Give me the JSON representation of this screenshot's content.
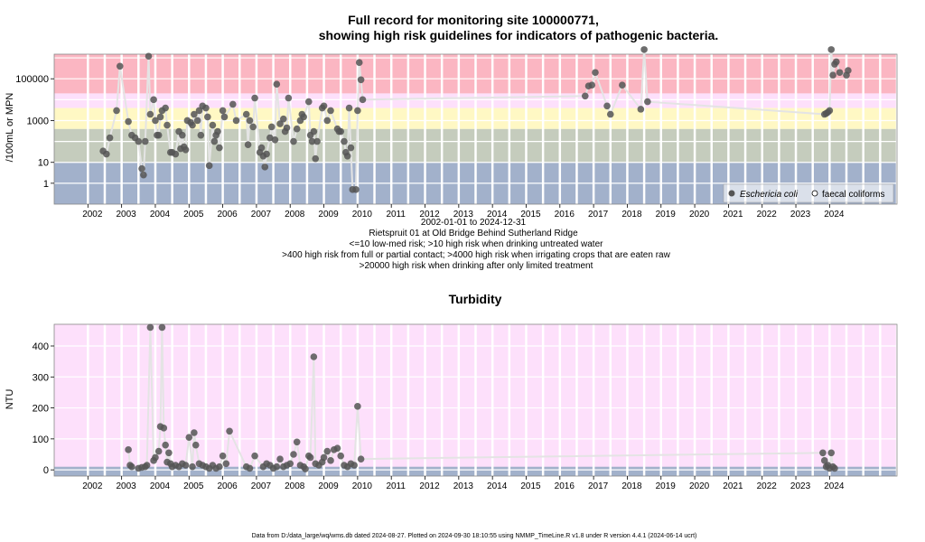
{
  "chart_data": [
    {
      "type": "scatter",
      "title_line1": "Full record for monitoring site 100000771,",
      "title_line2": "showing high risk guidelines for indicators of pathogenic bacteria.",
      "ylabel": "/100mL or MPN",
      "y_scale": "log",
      "ylim": [
        0.1,
        1500000
      ],
      "xlim": [
        2001.0,
        2026.0
      ],
      "y_ticks": [
        "1",
        "10",
        "1000",
        "100000"
      ],
      "x_ticks": [
        "2002",
        "2003",
        "2004",
        "2005",
        "2006",
        "2007",
        "2008",
        "2009",
        "2010",
        "2011",
        "2012",
        "2013",
        "2014",
        "2015",
        "2016",
        "2017",
        "2018",
        "2019",
        "2020",
        "2021",
        "2022",
        "2023",
        "2024"
      ],
      "risk_bands": [
        {
          "from": 0.1,
          "to": 10,
          "color": "#a2b1cb"
        },
        {
          "from": 10,
          "to": 400,
          "color": "#c5ccbd"
        },
        {
          "from": 400,
          "to": 4000,
          "color": "#fff8c4"
        },
        {
          "from": 4000,
          "to": 20000,
          "color": "#fde0fb"
        },
        {
          "from": 20000,
          "to": 1500000,
          "color": "#fbb6c2"
        }
      ],
      "subtitle_lines": [
        "2002-01-01 to 2024-12-31",
        "Rietspruit 01 at Old Bridge Behind Sutherland Ridge",
        "<=10 low-med risk; >10 high risk when drinking untreated water",
        ">400 high risk from full or partial contact; >4000 high risk when irrigating crops that are eaten raw",
        ">20000 high risk when drinking after only limited treatment"
      ],
      "legend": {
        "position": "bottom-right",
        "series1": "Eschericia coli",
        "series2": "faecal coliforms"
      },
      "series": [
        {
          "name": "Eschericia coli",
          "points": [
            [
              2002.45,
              35
            ],
            [
              2002.55,
              25
            ],
            [
              2002.65,
              150
            ],
            [
              2002.85,
              3000
            ],
            [
              2002.95,
              400000
            ],
            [
              2003.2,
              900
            ],
            [
              2003.3,
              200
            ],
            [
              2003.4,
              150
            ],
            [
              2003.5,
              100
            ],
            [
              2003.6,
              5
            ],
            [
              2003.65,
              2.5
            ],
            [
              2003.7,
              100
            ],
            [
              2003.8,
              1200000
            ],
            [
              2003.85,
              2000
            ],
            [
              2003.95,
              10000
            ],
            [
              2004.0,
              1000
            ],
            [
              2004.05,
              200
            ],
            [
              2004.1,
              200
            ],
            [
              2004.15,
              1500
            ],
            [
              2004.2,
              3000
            ],
            [
              2004.3,
              4000
            ],
            [
              2004.35,
              600
            ],
            [
              2004.45,
              30
            ],
            [
              2004.5,
              30
            ],
            [
              2004.6,
              25
            ],
            [
              2004.7,
              300
            ],
            [
              2004.75,
              45
            ],
            [
              2004.8,
              200
            ],
            [
              2004.85,
              55
            ],
            [
              2004.9,
              40
            ],
            [
              2004.95,
              1000
            ],
            [
              2005.05,
              800
            ],
            [
              2005.1,
              600
            ],
            [
              2005.15,
              2000
            ],
            [
              2005.25,
              1000
            ],
            [
              2005.3,
              3000
            ],
            [
              2005.35,
              200
            ],
            [
              2005.4,
              5000
            ],
            [
              2005.5,
              4000
            ],
            [
              2005.55,
              1500
            ],
            [
              2005.6,
              7
            ],
            [
              2005.7,
              600
            ],
            [
              2005.75,
              100
            ],
            [
              2005.8,
              200
            ],
            [
              2005.85,
              300
            ],
            [
              2005.9,
              50
            ],
            [
              2006.0,
              3000
            ],
            [
              2006.05,
              1500
            ],
            [
              2006.3,
              6000
            ],
            [
              2006.4,
              1000
            ],
            [
              2006.7,
              2000
            ],
            [
              2006.75,
              70
            ],
            [
              2006.8,
              1000
            ],
            [
              2006.9,
              500
            ],
            [
              2006.95,
              12000
            ],
            [
              2007.1,
              30
            ],
            [
              2007.15,
              50
            ],
            [
              2007.2,
              20
            ],
            [
              2007.25,
              6
            ],
            [
              2007.3,
              25
            ],
            [
              2007.4,
              150
            ],
            [
              2007.45,
              500
            ],
            [
              2007.55,
              120
            ],
            [
              2007.6,
              55000
            ],
            [
              2007.7,
              700
            ],
            [
              2007.8,
              1200
            ],
            [
              2007.85,
              300
            ],
            [
              2007.9,
              450
            ],
            [
              2007.95,
              12000
            ],
            [
              2008.1,
              100
            ],
            [
              2008.2,
              400
            ],
            [
              2008.3,
              1000
            ],
            [
              2008.35,
              2000
            ],
            [
              2008.4,
              1500
            ],
            [
              2008.55,
              8000
            ],
            [
              2008.6,
              200
            ],
            [
              2008.65,
              100
            ],
            [
              2008.7,
              300
            ],
            [
              2008.75,
              15
            ],
            [
              2008.8,
              100
            ],
            [
              2008.95,
              4000
            ],
            [
              2009.0,
              5000
            ],
            [
              2009.1,
              1000
            ],
            [
              2009.2,
              3000
            ],
            [
              2009.4,
              400
            ],
            [
              2009.45,
              300
            ],
            [
              2009.5,
              300
            ],
            [
              2009.6,
              100
            ],
            [
              2009.65,
              30
            ],
            [
              2009.7,
              20
            ],
            [
              2009.75,
              4000
            ],
            [
              2009.8,
              50
            ],
            [
              2009.85,
              0.5
            ],
            [
              2009.95,
              0.5
            ],
            [
              2010.0,
              3000
            ],
            [
              2010.05,
              600000
            ],
            [
              2010.1,
              90000
            ],
            [
              2010.15,
              10000
            ],
            [
              2016.75,
              15000
            ],
            [
              2016.85,
              45000
            ],
            [
              2016.95,
              50000
            ],
            [
              2017.05,
              200000
            ],
            [
              2017.4,
              5000
            ],
            [
              2017.5,
              2000
            ],
            [
              2017.85,
              50000
            ],
            [
              2018.4,
              3500
            ],
            [
              2018.5,
              2500000
            ],
            [
              2018.6,
              8000
            ],
            [
              2023.85,
              2000
            ],
            [
              2023.9,
              2200
            ],
            [
              2023.95,
              2500
            ],
            [
              2024.0,
              3000
            ],
            [
              2024.05,
              2500000
            ],
            [
              2024.1,
              150000
            ],
            [
              2024.15,
              500000
            ],
            [
              2024.2,
              650000
            ],
            [
              2024.3,
              200000
            ],
            [
              2024.5,
              150000
            ],
            [
              2024.55,
              250000
            ]
          ]
        },
        {
          "name": "faecal coliforms",
          "points": []
        }
      ]
    },
    {
      "type": "scatter",
      "title": "Turbidity",
      "ylabel": "NTU",
      "ylim": [
        -20,
        470
      ],
      "xlim": [
        2001.0,
        2026.0
      ],
      "y_ticks": [
        0,
        100,
        200,
        300,
        400
      ],
      "x_ticks": [
        "2002",
        "2003",
        "2004",
        "2005",
        "2006",
        "2007",
        "2008",
        "2009",
        "2010",
        "2011",
        "2012",
        "2013",
        "2014",
        "2015",
        "2016",
        "2017",
        "2018",
        "2019",
        "2020",
        "2021",
        "2022",
        "2023",
        "2024"
      ],
      "series": [
        {
          "name": "",
          "points": [
            [
              2003.2,
              65
            ],
            [
              2003.25,
              15
            ],
            [
              2003.3,
              10
            ],
            [
              2003.5,
              5
            ],
            [
              2003.6,
              8
            ],
            [
              2003.7,
              10
            ],
            [
              2003.75,
              15
            ],
            [
              2003.85,
              460
            ],
            [
              2003.95,
              30
            ],
            [
              2004.0,
              40
            ],
            [
              2004.1,
              60
            ],
            [
              2004.15,
              140
            ],
            [
              2004.2,
              460
            ],
            [
              2004.25,
              135
            ],
            [
              2004.3,
              80
            ],
            [
              2004.35,
              25
            ],
            [
              2004.4,
              55
            ],
            [
              2004.45,
              20
            ],
            [
              2004.5,
              10
            ],
            [
              2004.6,
              15
            ],
            [
              2004.7,
              10
            ],
            [
              2004.8,
              20
            ],
            [
              2004.9,
              15
            ],
            [
              2005.0,
              105
            ],
            [
              2005.1,
              10
            ],
            [
              2005.15,
              120
            ],
            [
              2005.2,
              80
            ],
            [
              2005.3,
              20
            ],
            [
              2005.4,
              15
            ],
            [
              2005.5,
              10
            ],
            [
              2005.6,
              5
            ],
            [
              2005.7,
              15
            ],
            [
              2005.8,
              5
            ],
            [
              2005.9,
              10
            ],
            [
              2006.0,
              45
            ],
            [
              2006.1,
              20
            ],
            [
              2006.2,
              125
            ],
            [
              2006.7,
              10
            ],
            [
              2006.8,
              5
            ],
            [
              2006.95,
              45
            ],
            [
              2007.2,
              10
            ],
            [
              2007.3,
              20
            ],
            [
              2007.4,
              15
            ],
            [
              2007.5,
              5
            ],
            [
              2007.6,
              10
            ],
            [
              2007.7,
              35
            ],
            [
              2007.8,
              10
            ],
            [
              2007.9,
              15
            ],
            [
              2008.0,
              20
            ],
            [
              2008.1,
              50
            ],
            [
              2008.2,
              90
            ],
            [
              2008.3,
              15
            ],
            [
              2008.4,
              10
            ],
            [
              2008.45,
              3
            ],
            [
              2008.55,
              45
            ],
            [
              2008.6,
              40
            ],
            [
              2008.7,
              365
            ],
            [
              2008.75,
              20
            ],
            [
              2008.85,
              15
            ],
            [
              2008.95,
              25
            ],
            [
              2009.0,
              40
            ],
            [
              2009.1,
              60
            ],
            [
              2009.2,
              30
            ],
            [
              2009.3,
              65
            ],
            [
              2009.4,
              70
            ],
            [
              2009.5,
              45
            ],
            [
              2009.6,
              15
            ],
            [
              2009.7,
              10
            ],
            [
              2009.8,
              20
            ],
            [
              2009.9,
              15
            ],
            [
              2010.0,
              205
            ],
            [
              2010.1,
              35
            ],
            [
              2023.8,
              55
            ],
            [
              2023.85,
              30
            ],
            [
              2023.9,
              10
            ],
            [
              2023.95,
              15
            ],
            [
              2024.0,
              5
            ],
            [
              2024.05,
              55
            ],
            [
              2024.1,
              10
            ],
            [
              2024.15,
              5
            ]
          ]
        }
      ]
    }
  ],
  "footer": "Data from D:/data_large/wq/wms.db dated 2024-08-27. Plotted on 2024-09-30 18:10:55 using NMMP_TimeLine.R v1.8 under R version 4.4.1 (2024-06-14 ucrt)",
  "colors": {
    "point": "#555555",
    "line": "#e4e4e4",
    "turbidity_bg": "#fde0fb",
    "turbidity_band": "#a2b1cb"
  }
}
